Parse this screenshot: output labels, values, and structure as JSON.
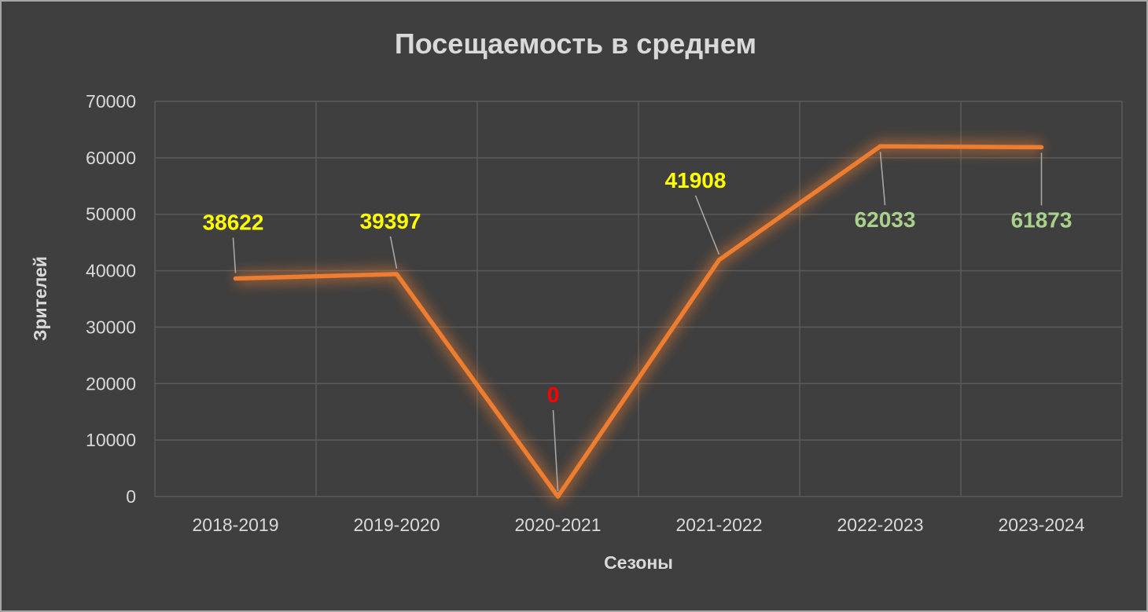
{
  "chart_data": {
    "type": "line",
    "title": "Посещаемость в среднем",
    "xlabel": "Сезоны",
    "ylabel": "Зрителей",
    "categories": [
      "2018-2019",
      "2019-2020",
      "2020-2021",
      "2021-2022",
      "2022-2023",
      "2023-2024"
    ],
    "values": [
      38622,
      39397,
      0,
      41908,
      62033,
      61873
    ],
    "point_labels": [
      {
        "text": "38622",
        "color": "#ffff00"
      },
      {
        "text": "39397",
        "color": "#ffff00"
      },
      {
        "text": "0",
        "color": "#ff0000"
      },
      {
        "text": "41908",
        "color": "#ffff00"
      },
      {
        "text": "62033",
        "color": "#a9d18e"
      },
      {
        "text": "61873",
        "color": "#a9d18e"
      }
    ],
    "ylim": [
      0,
      70000
    ],
    "ytick_step": 10000,
    "grid": true,
    "legend": "none",
    "series_color": "#ed7d31",
    "background_color": "#3f3f3f",
    "gridline_color": "#5a5a5a",
    "axis_text_color": "#d9d9d9",
    "leader_line_color": "#a6a6a6"
  }
}
